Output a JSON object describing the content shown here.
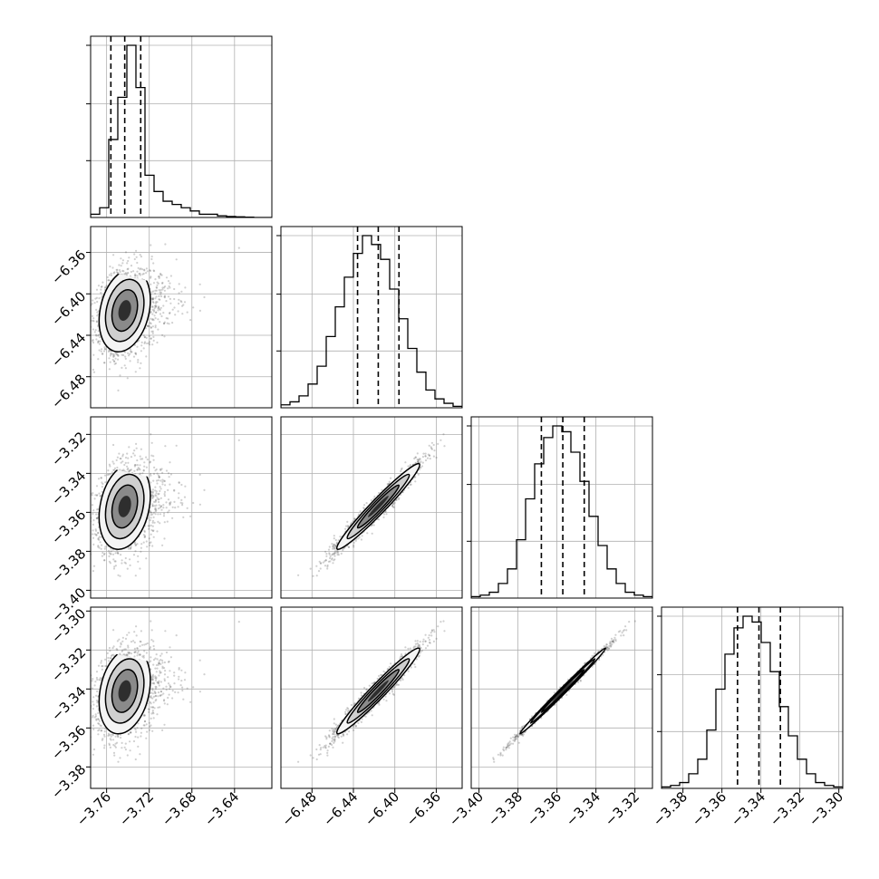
{
  "chart_data": {
    "type": "corner",
    "parameters": [
      {
        "range": [
          -3.775,
          -3.605
        ],
        "ticks": [
          -3.76,
          -3.72,
          -3.68,
          -3.64
        ],
        "tick_labels": [
          "−3.76",
          "−3.72",
          "−3.68",
          "−3.64"
        ],
        "quantiles": [
          -3.756,
          -3.743,
          -3.728
        ],
        "median": -3.743,
        "sigma": 0.012,
        "skew": 0.9
      },
      {
        "range": [
          -6.51,
          -6.335
        ],
        "ticks": [
          -6.48,
          -6.44,
          -6.4,
          -6.36
        ],
        "tick_labels": [
          "−6.48",
          "−6.44",
          "−6.40",
          "−6.36"
        ],
        "quantiles": [
          -6.436,
          -6.416,
          -6.396
        ],
        "median": -6.416,
        "sigma": 0.02,
        "skew": 0
      },
      {
        "range": [
          -3.404,
          -3.311
        ],
        "ticks": [
          -3.4,
          -3.38,
          -3.36,
          -3.34,
          -3.32
        ],
        "tick_labels": [
          "−3.40",
          "−3.38",
          "−3.36",
          "−3.34",
          "−3.32"
        ],
        "quantiles": [
          -3.368,
          -3.357,
          -3.346
        ],
        "median": -3.357,
        "sigma": 0.011,
        "skew": 0
      },
      {
        "range": [
          -3.391,
          -3.298
        ],
        "ticks": [
          -3.38,
          -3.36,
          -3.34,
          -3.32,
          -3.3
        ],
        "tick_labels": [
          "−3.38",
          "−3.36",
          "−3.34",
          "−3.32",
          "−3.30"
        ],
        "quantiles": [
          -3.352,
          -3.341,
          -3.33
        ],
        "median": -3.341,
        "sigma": 0.011,
        "skew": 0
      }
    ],
    "correlations": [
      [
        1.0,
        0.25,
        0.25,
        0.25
      ],
      [
        0.25,
        1.0,
        0.97,
        0.97
      ],
      [
        0.25,
        0.97,
        1.0,
        0.995
      ],
      [
        0.25,
        0.97,
        0.995,
        1.0
      ]
    ],
    "histogram_counts": [
      [
        1,
        3,
        24,
        37,
        53,
        40,
        13,
        8,
        5,
        4,
        3,
        2,
        1,
        1,
        0.5,
        0.3,
        0.2,
        0.1,
        0,
        0
      ],
      [
        1,
        2,
        4,
        8,
        14,
        24,
        34,
        44,
        52,
        58,
        55,
        50,
        40,
        30,
        20,
        12,
        6,
        3,
        1.5,
        0.5
      ],
      [
        0.5,
        1,
        2,
        5,
        10,
        20,
        34,
        46,
        55,
        59,
        57,
        50,
        40,
        28,
        18,
        10,
        5,
        2,
        1,
        0.5
      ],
      [
        0.5,
        1,
        2,
        5,
        10,
        20,
        34,
        46,
        55,
        59,
        57,
        50,
        40,
        28,
        18,
        10,
        5,
        2,
        1,
        0.5
      ]
    ],
    "grid": true,
    "quantile_lines": "dashed"
  }
}
